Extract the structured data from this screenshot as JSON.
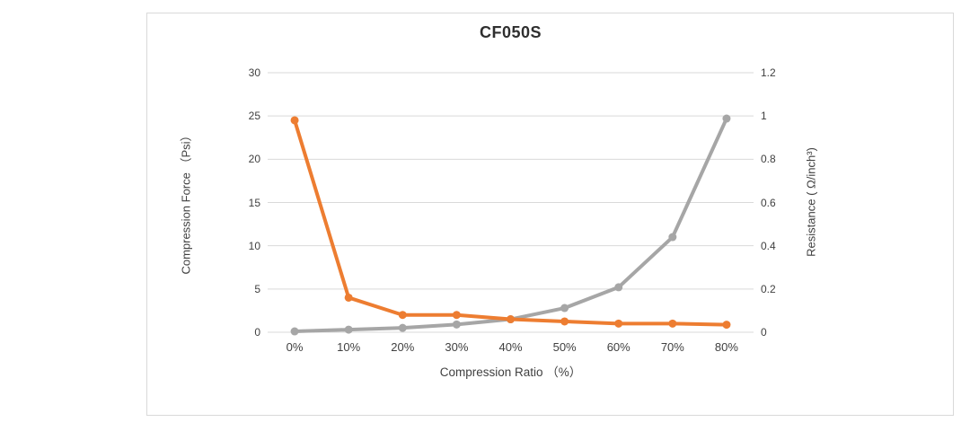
{
  "chart": {
    "frame_border_color": "#d9d9d9",
    "background": "#ffffff"
  },
  "chart_data": {
    "type": "line",
    "title": "CF050S",
    "categories": [
      "0%",
      "10%",
      "20%",
      "30%",
      "40%",
      "50%",
      "60%",
      "70%",
      "80%"
    ],
    "xlabel": "Compression Ratio （%）",
    "left_axis": {
      "label": "Compression Force （Psi）",
      "ticks": [
        0,
        5,
        10,
        15,
        20,
        25,
        30
      ],
      "range": [
        0,
        30
      ]
    },
    "right_axis": {
      "label": "Resistance ( Ω/inch³)",
      "ticks": [
        0,
        0.2,
        0.4,
        0.6,
        0.8,
        1,
        1.2
      ],
      "range": [
        0,
        1.2
      ]
    },
    "grid": "horizontal-only",
    "legend": "none",
    "colors": {
      "grid": "#d9d9d9",
      "axis_line": "#d9d9d9",
      "text": "#404040"
    },
    "series": [
      {
        "name": "Compression Force",
        "axis": "left",
        "color": "#a6a6a6",
        "values": [
          0.1,
          0.3,
          0.5,
          0.9,
          1.5,
          2.8,
          5.2,
          11,
          24.7
        ]
      },
      {
        "name": "Resistance",
        "axis": "right",
        "color": "#ed7d31",
        "values": [
          0.98,
          0.16,
          0.08,
          0.08,
          0.06,
          0.05,
          0.04,
          0.04,
          0.035
        ]
      }
    ]
  }
}
